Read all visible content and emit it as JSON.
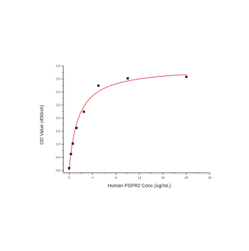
{
  "chart_data": {
    "type": "scatter",
    "title": "",
    "xlabel": "Human FGFR2 Conc.(ug/mL)",
    "ylabel": "OD Value (450nm)",
    "xlim": [
      -1,
      24
    ],
    "ylim": [
      -0.1,
      4.0
    ],
    "xticks": [
      0,
      4,
      8,
      12,
      16,
      20,
      24
    ],
    "yticks": [
      0.0,
      0.5,
      1.0,
      1.5,
      2.0,
      2.5,
      3.0,
      3.5,
      4.0
    ],
    "ytick_labels": [
      "0.0",
      "0.5",
      "1.0",
      "1.5",
      "2.0",
      "2.5",
      "3.0",
      "3.5",
      "4.0"
    ],
    "grid": false,
    "points": {
      "x": [
        0.0,
        0.31,
        0.63,
        1.25,
        2.5,
        5.0,
        10.0,
        20.0
      ],
      "y": [
        0.08,
        0.62,
        1.02,
        1.62,
        2.24,
        3.24,
        3.52,
        3.58
      ]
    },
    "fit_curve": {
      "type": "hyperbolic",
      "bmax": 3.95,
      "kd": 1.55,
      "color": "#e8323c"
    },
    "marker_color": "#111111"
  }
}
